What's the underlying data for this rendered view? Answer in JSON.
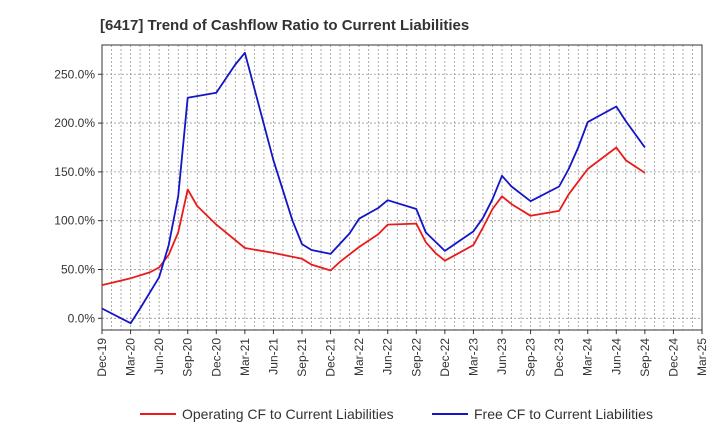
{
  "chart_data": {
    "type": "line",
    "title": "[6417]  Trend of Cashflow Ratio to Current Liabilities",
    "xlabel": "",
    "ylabel": "",
    "grid": true,
    "legend_position": "bottom",
    "x_tick_labels": [
      "Dec-19",
      "Mar-20",
      "Jun-20",
      "Sep-20",
      "Dec-20",
      "Mar-21",
      "Jun-21",
      "Sep-21",
      "Dec-21",
      "Mar-22",
      "Jun-22",
      "Sep-22",
      "Dec-22",
      "Mar-23",
      "Jun-23",
      "Sep-23",
      "Dec-23",
      "Mar-24",
      "Jun-24",
      "Sep-24",
      "Dec-24",
      "Mar-25"
    ],
    "y_ticks": [
      0,
      50,
      100,
      150,
      200,
      250
    ],
    "y_tick_labels": [
      "0.0%",
      "50.0%",
      "100.0%",
      "150.0%",
      "200.0%",
      "250.0%"
    ],
    "ylim": [
      -12,
      280
    ],
    "x_range_months": [
      0,
      63
    ],
    "series": [
      {
        "name": "Operating CF to Current Liabilities",
        "color": "#e81c1c",
        "points": [
          [
            0,
            34
          ],
          [
            3,
            41
          ],
          [
            5,
            47
          ],
          [
            6,
            52
          ],
          [
            7,
            65
          ],
          [
            8,
            88
          ],
          [
            9,
            132
          ],
          [
            10,
            115
          ],
          [
            12,
            96
          ],
          [
            15,
            72
          ],
          [
            18,
            67
          ],
          [
            21,
            61
          ],
          [
            22,
            55
          ],
          [
            24,
            49
          ],
          [
            25,
            58
          ],
          [
            27,
            73
          ],
          [
            29,
            86
          ],
          [
            30,
            96
          ],
          [
            33,
            97
          ],
          [
            34,
            78
          ],
          [
            35,
            67
          ],
          [
            36,
            59
          ],
          [
            39,
            75
          ],
          [
            40,
            93
          ],
          [
            41,
            112
          ],
          [
            42,
            125
          ],
          [
            43,
            117
          ],
          [
            45,
            105
          ],
          [
            48,
            110
          ],
          [
            49,
            127
          ],
          [
            51,
            153
          ],
          [
            54,
            175
          ],
          [
            55,
            162
          ],
          [
            57,
            149
          ]
        ]
      },
      {
        "name": "Free CF to Current Liabilities",
        "color": "#1414c8",
        "points": [
          [
            0,
            10
          ],
          [
            3,
            -5
          ],
          [
            4,
            10
          ],
          [
            6,
            42
          ],
          [
            7,
            75
          ],
          [
            8,
            125
          ],
          [
            9,
            226
          ],
          [
            12,
            231
          ],
          [
            14,
            260
          ],
          [
            15,
            272
          ],
          [
            18,
            162
          ],
          [
            20,
            100
          ],
          [
            21,
            76
          ],
          [
            22,
            70
          ],
          [
            24,
            66
          ],
          [
            26,
            87
          ],
          [
            27,
            102
          ],
          [
            29,
            113
          ],
          [
            30,
            121
          ],
          [
            33,
            112
          ],
          [
            34,
            88
          ],
          [
            36,
            69
          ],
          [
            39,
            89
          ],
          [
            40,
            103
          ],
          [
            41,
            122
          ],
          [
            42,
            146
          ],
          [
            43,
            135
          ],
          [
            45,
            120
          ],
          [
            48,
            135
          ],
          [
            49,
            153
          ],
          [
            50,
            175
          ],
          [
            51,
            201
          ],
          [
            54,
            217
          ],
          [
            55,
            202
          ],
          [
            57,
            175
          ]
        ]
      }
    ]
  }
}
